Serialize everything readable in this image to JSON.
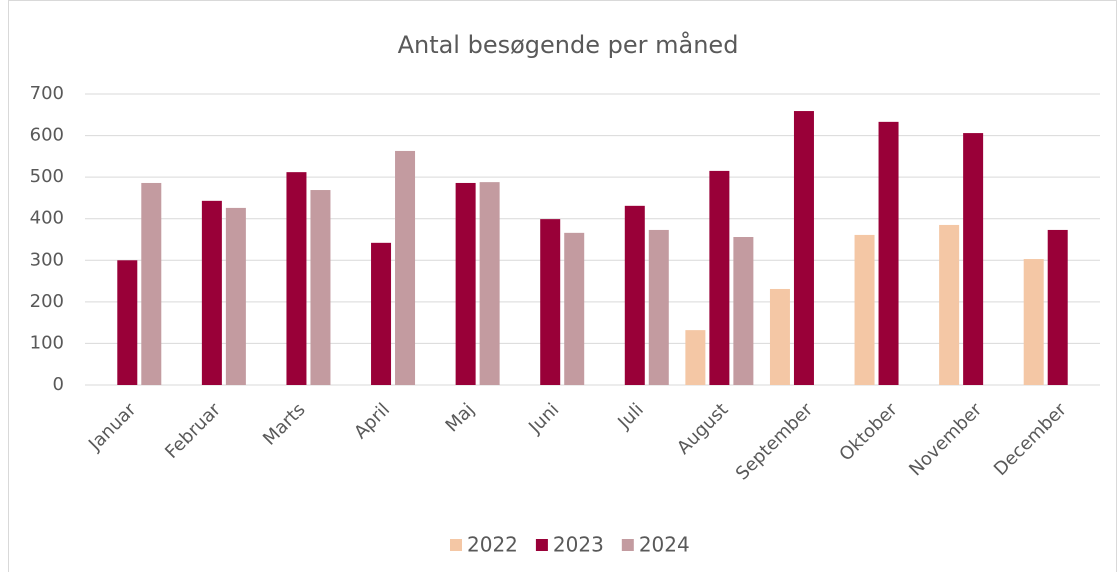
{
  "chart_data": {
    "type": "bar",
    "title": "Antal besøgende per måned",
    "categories": [
      "Januar",
      "Februar",
      "Marts",
      "April",
      "Maj",
      "Juni",
      "Juli",
      "August",
      "September",
      "Oktober",
      "November",
      "December"
    ],
    "series": [
      {
        "name": "2022",
        "color": "#f4c7a5",
        "values": [
          null,
          null,
          null,
          null,
          null,
          null,
          null,
          132,
          231,
          361,
          385,
          303
        ]
      },
      {
        "name": "2023",
        "color": "#990038",
        "values": [
          300,
          443,
          512,
          342,
          486,
          399,
          431,
          515,
          659,
          633,
          606,
          373
        ]
      },
      {
        "name": "2024",
        "color": "#c39ba0",
        "values": [
          486,
          426,
          469,
          563,
          488,
          366,
          373,
          356,
          null,
          null,
          null,
          null
        ]
      }
    ],
    "ylim": [
      0,
      700
    ],
    "yticks": [
      0,
      100,
      200,
      300,
      400,
      500,
      600,
      700
    ],
    "grid": true,
    "legend": "bottom"
  }
}
